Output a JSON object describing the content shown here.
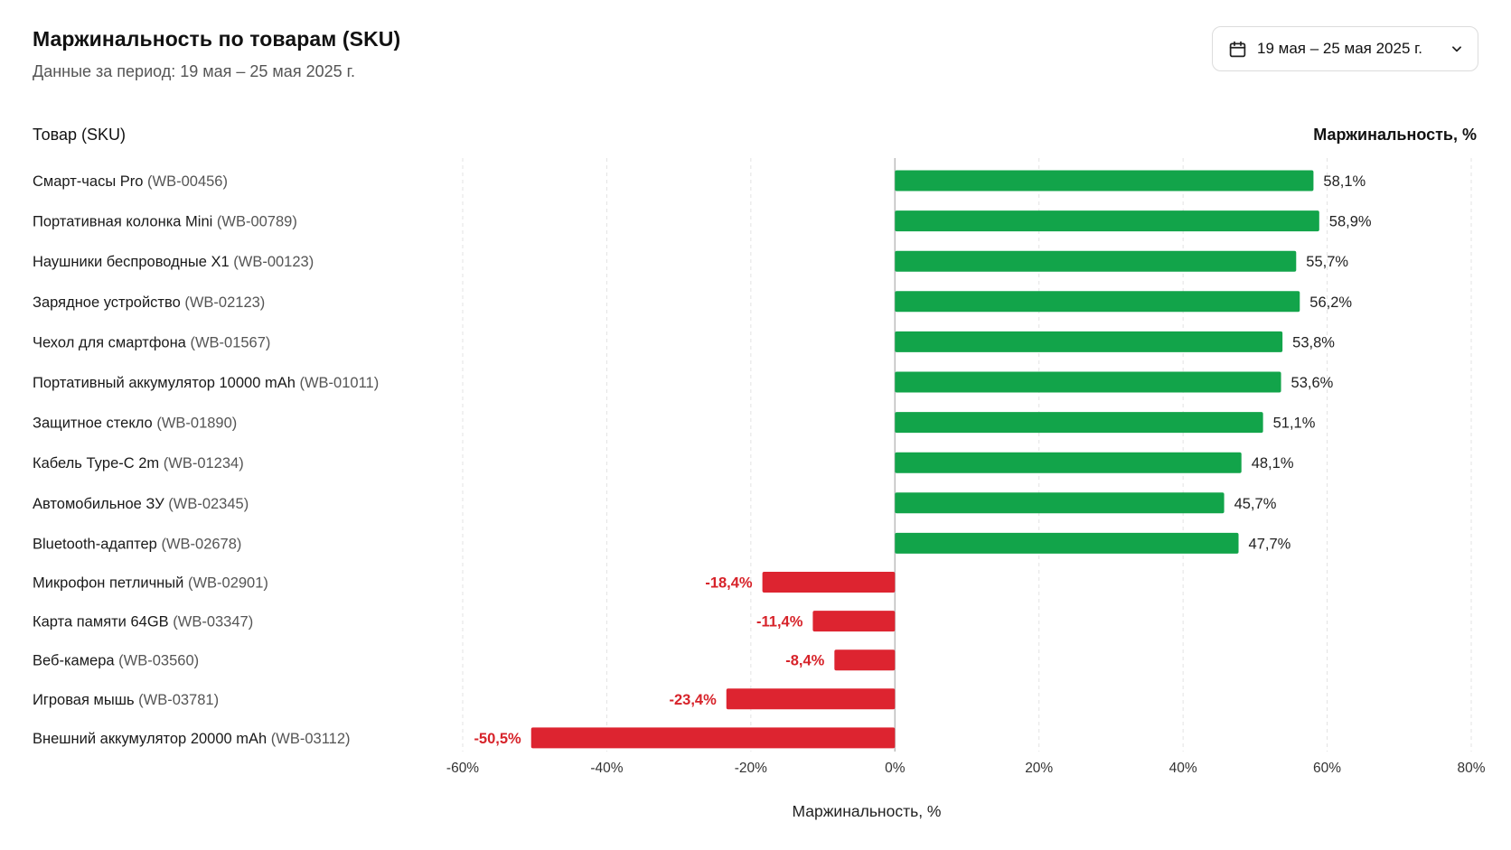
{
  "header": {
    "title": "Маржинальность по товарам (SKU)",
    "subtitle": "Данные за период: 19 мая – 25 мая 2025 г.",
    "date_range_label": "19 мая – 25 мая 2025 г."
  },
  "columns": {
    "left": "Товар (SKU)",
    "right": "Маржинальность, %"
  },
  "colors": {
    "positive": "#12a44a",
    "negative": "#dd2430"
  },
  "icons": {
    "date_picker": "calendar-icon",
    "dropdown": "chevron-down-icon"
  },
  "chart_data": {
    "type": "bar",
    "orientation": "horizontal",
    "xlabel": "Маржинальность, %",
    "xlim": [
      -60,
      80
    ],
    "xticks": [
      "-60%",
      "-40%",
      "-20%",
      "0%",
      "20%",
      "40%",
      "60%",
      "80%"
    ],
    "grid": true,
    "items": [
      {
        "name": "Смарт-часы Pro",
        "sku": "(WB-00456)",
        "value": 58.1,
        "label": "58,1%"
      },
      {
        "name": "Портативная колонка Mini",
        "sku": "(WB-00789)",
        "value": 58.9,
        "label": "58,9%"
      },
      {
        "name": "Наушники беспроводные X1",
        "sku": "(WB-00123)",
        "value": 55.7,
        "label": "55,7%"
      },
      {
        "name": "Зарядное устройство",
        "sku": "(WB-02123)",
        "value": 56.2,
        "label": "56,2%"
      },
      {
        "name": "Чехол для смартфона",
        "sku": "(WB-01567)",
        "value": 53.8,
        "label": "53,8%"
      },
      {
        "name": "Портативный аккумулятор 10000 mAh",
        "sku": "(WB-01011)",
        "value": 53.6,
        "label": "53,6%"
      },
      {
        "name": "Защитное стекло",
        "sku": "(WB-01890)",
        "value": 51.1,
        "label": "51,1%"
      },
      {
        "name": "Кабель Type-C 2m",
        "sku": "(WB-01234)",
        "value": 48.1,
        "label": "48,1%"
      },
      {
        "name": "Автомобильное ЗУ",
        "sku": "(WB-02345)",
        "value": 45.7,
        "label": "45,7%"
      },
      {
        "name": "Bluetooth-адаптер",
        "sku": "(WB-02678)",
        "value": 47.7,
        "label": "47,7%"
      },
      {
        "name": "Микрофон петличный",
        "sku": "(WB-02901)",
        "value": -18.4,
        "label": "-18,4%"
      },
      {
        "name": "Карта памяти 64GB",
        "sku": "(WB-03347)",
        "value": -11.4,
        "label": "-11,4%"
      },
      {
        "name": "Веб-камера",
        "sku": "(WB-03560)",
        "value": -8.4,
        "label": "-8,4%"
      },
      {
        "name": "Игровая мышь",
        "sku": "(WB-03781)",
        "value": -23.4,
        "label": "-23,4%"
      },
      {
        "name": "Внешний аккумулятор 20000 mAh",
        "sku": "(WB-03112)",
        "value": -50.5,
        "label": "-50,5%"
      }
    ]
  }
}
